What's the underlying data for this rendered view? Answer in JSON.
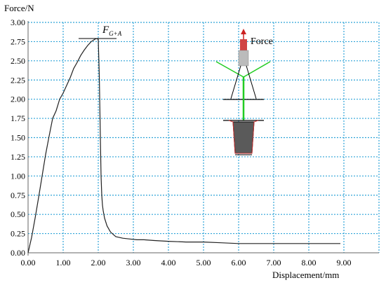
{
  "chart_data": {
    "type": "line",
    "ylabel": "Force/N",
    "xlabel": "Displacement/mm",
    "xlim": [
      0,
      10.0
    ],
    "ylim": [
      0,
      3.0
    ],
    "x_ticks": [
      "0.00",
      "1.00",
      "2.00",
      "3.00",
      "4.00",
      "5.00",
      "6.00",
      "7.00",
      "8.00",
      "9.00"
    ],
    "y_ticks": [
      "0.00",
      "0.25",
      "0.50",
      "0.75",
      "1.00",
      "1.25",
      "1.50",
      "1.75",
      "2.00",
      "2.25",
      "2.50",
      "2.75",
      "3.00"
    ],
    "grid": true,
    "grid_style": "dotted",
    "grid_color": "#2fa4d8",
    "series": [
      {
        "color": "#222222",
        "x": [
          0.0,
          0.1,
          0.2,
          0.3,
          0.4,
          0.5,
          0.6,
          0.7,
          0.8,
          0.9,
          1.0,
          1.1,
          1.2,
          1.3,
          1.4,
          1.5,
          1.6,
          1.7,
          1.8,
          1.9,
          1.95,
          2.0,
          2.03,
          2.06,
          2.08,
          2.1,
          2.12,
          2.14,
          2.18,
          2.25,
          2.35,
          2.5,
          2.7,
          2.9,
          3.1,
          3.3,
          3.6,
          4.0,
          4.5,
          5.0,
          5.5,
          6.0,
          6.5,
          7.0,
          7.5,
          8.0,
          8.5,
          8.9
        ],
        "y": [
          0.0,
          0.2,
          0.45,
          0.72,
          1.0,
          1.28,
          1.52,
          1.75,
          1.85,
          2.0,
          2.08,
          2.18,
          2.28,
          2.4,
          2.48,
          2.57,
          2.64,
          2.7,
          2.75,
          2.78,
          2.79,
          2.78,
          2.3,
          1.5,
          1.0,
          0.75,
          0.62,
          0.55,
          0.45,
          0.35,
          0.27,
          0.21,
          0.19,
          0.18,
          0.17,
          0.17,
          0.16,
          0.15,
          0.14,
          0.14,
          0.13,
          0.12,
          0.12,
          0.12,
          0.12,
          0.12,
          0.12,
          0.12
        ]
      }
    ],
    "annotations": [
      {
        "text": "F",
        "subscript": "G+A",
        "x": 2.0,
        "y": 2.79
      }
    ],
    "inset": {
      "label": "Force",
      "colors": {
        "arrow": "#cc2222",
        "beam": "#22cc22",
        "fixture": "#999999",
        "block": "#5a5a5a"
      }
    }
  }
}
